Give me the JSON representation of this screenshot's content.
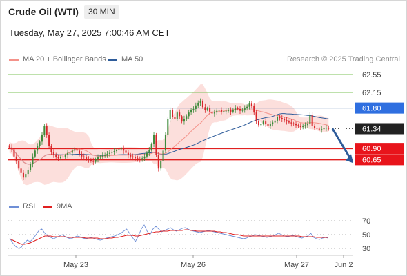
{
  "header": {
    "instrument": "Crude Oil (WTI)",
    "timeframe": "30 MIN",
    "datetime": "Tuesday, May 27, 2025 7:00:46 AM CET"
  },
  "legend_top": {
    "items": [
      {
        "label": "MA 20 + Bollinger Bands",
        "color": "#f4928a"
      },
      {
        "label": "MA 50",
        "color": "#2e5c9a"
      }
    ],
    "credit": "Research © 2025 Trading Central"
  },
  "legend_bottom": {
    "items": [
      {
        "label": "RSI",
        "color": "#6f8fd6"
      },
      {
        "label": "9MA",
        "color": "#e02020"
      }
    ]
  },
  "chart_data": [
    {
      "type": "candlestick",
      "name": "price",
      "ylim": [
        59.9,
        62.75
      ],
      "x_ticks": [
        "May 23",
        "May 26",
        "May 27",
        "Jun 2"
      ],
      "close": [
        60.92,
        60.88,
        60.72,
        60.62,
        60.45,
        60.35,
        60.25,
        60.33,
        60.42,
        60.55,
        60.72,
        60.85,
        60.95,
        61.05,
        61.2,
        61.4,
        61.2,
        60.95,
        60.82,
        60.75,
        60.7,
        60.68,
        60.72,
        60.7,
        60.75,
        60.8,
        60.8,
        60.85,
        60.88,
        60.85,
        60.78,
        60.72,
        60.7,
        60.66,
        60.65,
        60.62,
        60.6,
        60.66,
        60.7,
        60.72,
        60.74,
        60.75,
        60.78,
        60.8,
        60.82,
        60.84,
        60.86,
        60.88,
        60.9,
        60.85,
        60.8,
        60.75,
        60.72,
        60.7,
        60.68,
        60.66,
        60.65,
        60.68,
        60.72,
        60.8,
        60.86,
        61.0,
        61.2,
        60.75,
        60.45,
        60.62,
        60.85,
        61.2,
        61.55,
        61.75,
        61.6,
        61.55,
        61.7,
        61.62,
        61.5,
        61.56,
        61.62,
        61.7,
        61.75,
        61.78,
        61.86,
        61.92,
        61.95,
        61.82,
        61.76,
        61.8,
        61.72,
        61.68,
        61.7,
        61.74,
        61.76,
        61.72,
        61.73,
        61.74,
        61.75,
        61.72,
        61.76,
        61.8,
        61.78,
        61.74,
        61.76,
        61.8,
        61.83,
        61.9,
        61.85,
        61.7,
        61.52,
        61.42,
        61.45,
        61.5,
        61.45,
        61.4,
        61.44,
        61.48,
        61.52,
        61.6,
        61.58,
        61.55,
        61.53,
        61.5,
        61.48,
        61.46,
        61.44,
        61.42,
        61.4,
        61.38,
        61.4,
        61.42,
        61.44,
        61.65,
        61.4,
        61.36,
        61.34,
        61.32,
        61.33,
        61.35,
        61.36,
        61.34
      ],
      "levels": [
        {
          "value": 62.55,
          "label": "62.55",
          "kind": "resistance"
        },
        {
          "value": 62.15,
          "label": "62.15",
          "kind": "resistance"
        },
        {
          "value": 61.8,
          "label": "61.80",
          "kind": "pivot"
        },
        {
          "value": 61.34,
          "label": "61.34",
          "kind": "last"
        },
        {
          "value": 60.9,
          "label": "60.90",
          "kind": "support"
        },
        {
          "value": 60.65,
          "label": "60.65",
          "kind": "support"
        }
      ],
      "target_arrow": {
        "from": 61.34,
        "to": 60.65
      },
      "colors": {
        "up": "#3c8a3a",
        "down": "#d8262a",
        "band": "#fbd9d6",
        "ma20": "#f4928a",
        "ma50": "#2e5c9a",
        "resistance": "#7dc35a",
        "pivot": "#2e5c9a",
        "support": "#e02020",
        "last": "#222222",
        "arrow": "#2e5c9a"
      }
    },
    {
      "type": "line",
      "name": "rsi",
      "ylim": [
        25,
        75
      ],
      "ticks": [
        "70",
        "50",
        "30"
      ],
      "series": [
        {
          "name": "RSI",
          "values": [
            45,
            38,
            33,
            30,
            32,
            38,
            42,
            40,
            44,
            50,
            56,
            58,
            52,
            48,
            46,
            44,
            46,
            48,
            50,
            47,
            45,
            44,
            46,
            48,
            47,
            45,
            44,
            45,
            46,
            44,
            43,
            42,
            43,
            45,
            46,
            47,
            48,
            50,
            52,
            55,
            58,
            52,
            46,
            40,
            48,
            58,
            64,
            55,
            50,
            58,
            62,
            58,
            54,
            56,
            58,
            60,
            57,
            55,
            57,
            59,
            60,
            58,
            56,
            55,
            54,
            53,
            54,
            55,
            56,
            55,
            54,
            53,
            52,
            51,
            50,
            49,
            48,
            47,
            46,
            45,
            44,
            45,
            47,
            48,
            50,
            49,
            48,
            47,
            46,
            47,
            48,
            50,
            52,
            50,
            48,
            47,
            48,
            49,
            47,
            46,
            45,
            47,
            48,
            52,
            46,
            44,
            43,
            45,
            46,
            45
          ]
        },
        {
          "name": "9MA",
          "values": [
            44,
            42,
            40,
            38,
            36,
            36,
            37,
            38,
            40,
            42,
            44,
            46,
            48,
            48,
            48,
            47,
            47,
            47,
            47,
            47,
            46,
            46,
            46,
            46,
            46,
            46,
            45,
            45,
            45,
            45,
            45,
            44,
            44,
            44,
            45,
            45,
            46,
            46,
            47,
            48,
            49,
            49,
            49,
            48,
            48,
            49,
            50,
            51,
            52,
            53,
            54,
            54,
            55,
            55,
            55,
            56,
            56,
            56,
            56,
            56,
            57,
            57,
            56,
            56,
            55,
            55,
            55,
            55,
            55,
            55,
            55,
            54,
            54,
            53,
            53,
            52,
            51,
            50,
            50,
            49,
            48,
            48,
            48,
            48,
            48,
            48,
            48,
            48,
            48,
            48,
            48,
            48,
            48,
            48,
            48,
            48,
            48,
            48,
            48,
            48,
            47,
            47,
            47,
            47,
            47,
            46,
            46,
            46,
            46,
            46
          ]
        }
      ],
      "colors": {
        "rsi": "#6f8fd6",
        "ma": "#e02020"
      }
    }
  ]
}
